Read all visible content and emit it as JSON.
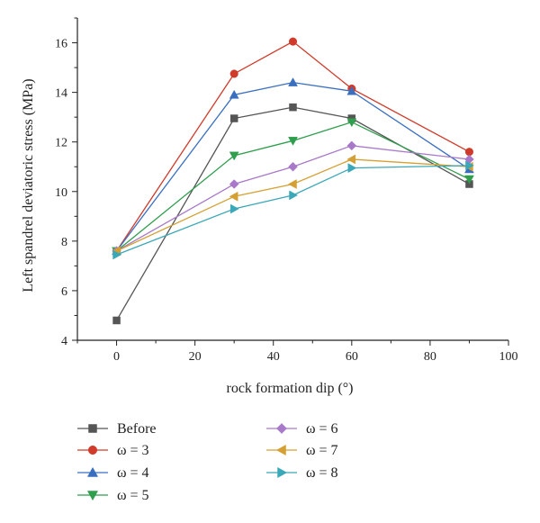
{
  "chart_data": {
    "type": "line",
    "title": "",
    "xlabel": "rock formation dip (°)",
    "ylabel": "Left spandrel deviatoric stress (MPa)",
    "xlim": [
      -10,
      100
    ],
    "ylim": [
      4,
      17
    ],
    "xticks": [
      0,
      20,
      40,
      60,
      80,
      100
    ],
    "yticks": [
      4,
      6,
      8,
      10,
      12,
      14,
      16
    ],
    "x": [
      0,
      30,
      45,
      60,
      90
    ],
    "grid": false,
    "legend_position": "bottom",
    "series": [
      {
        "name": "Before",
        "marker": "square",
        "color": "#555555",
        "values": [
          4.8,
          12.95,
          13.4,
          12.95,
          10.3
        ]
      },
      {
        "name": "ω = 3",
        "marker": "circle",
        "color": "#d03a2a",
        "values": [
          7.6,
          14.75,
          16.05,
          14.15,
          11.6
        ]
      },
      {
        "name": "ω = 4",
        "marker": "triangle-up",
        "color": "#3a6fc0",
        "values": [
          7.6,
          13.9,
          14.4,
          14.05,
          10.9
        ]
      },
      {
        "name": "ω = 5",
        "marker": "triangle-down",
        "color": "#2f9e4d",
        "values": [
          7.6,
          11.45,
          12.05,
          12.8,
          10.5
        ]
      },
      {
        "name": "ω = 6",
        "marker": "diamond",
        "color": "#a979c9",
        "values": [
          7.6,
          10.3,
          11.0,
          11.85,
          11.3
        ]
      },
      {
        "name": "ω = 7",
        "marker": "triangle-left",
        "color": "#d4a033",
        "values": [
          7.6,
          9.8,
          10.3,
          11.3,
          11.0
        ]
      },
      {
        "name": "ω = 8",
        "marker": "triangle-right",
        "color": "#3aa8b8",
        "values": [
          7.45,
          9.3,
          9.85,
          10.95,
          11.05
        ]
      }
    ]
  }
}
